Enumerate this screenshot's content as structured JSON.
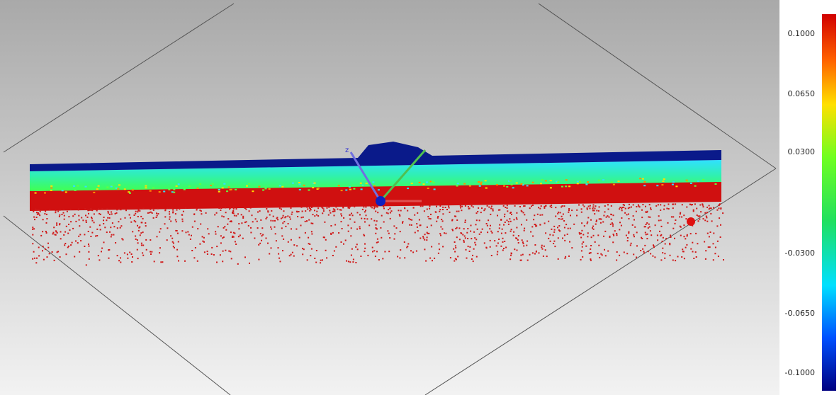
{
  "viewport": {
    "axis_label": "z"
  },
  "color_scale": {
    "labels": [
      "0.1000",
      "0.0650",
      "0.0300",
      "-0.0300",
      "-0.0650",
      "-0.1000"
    ]
  }
}
